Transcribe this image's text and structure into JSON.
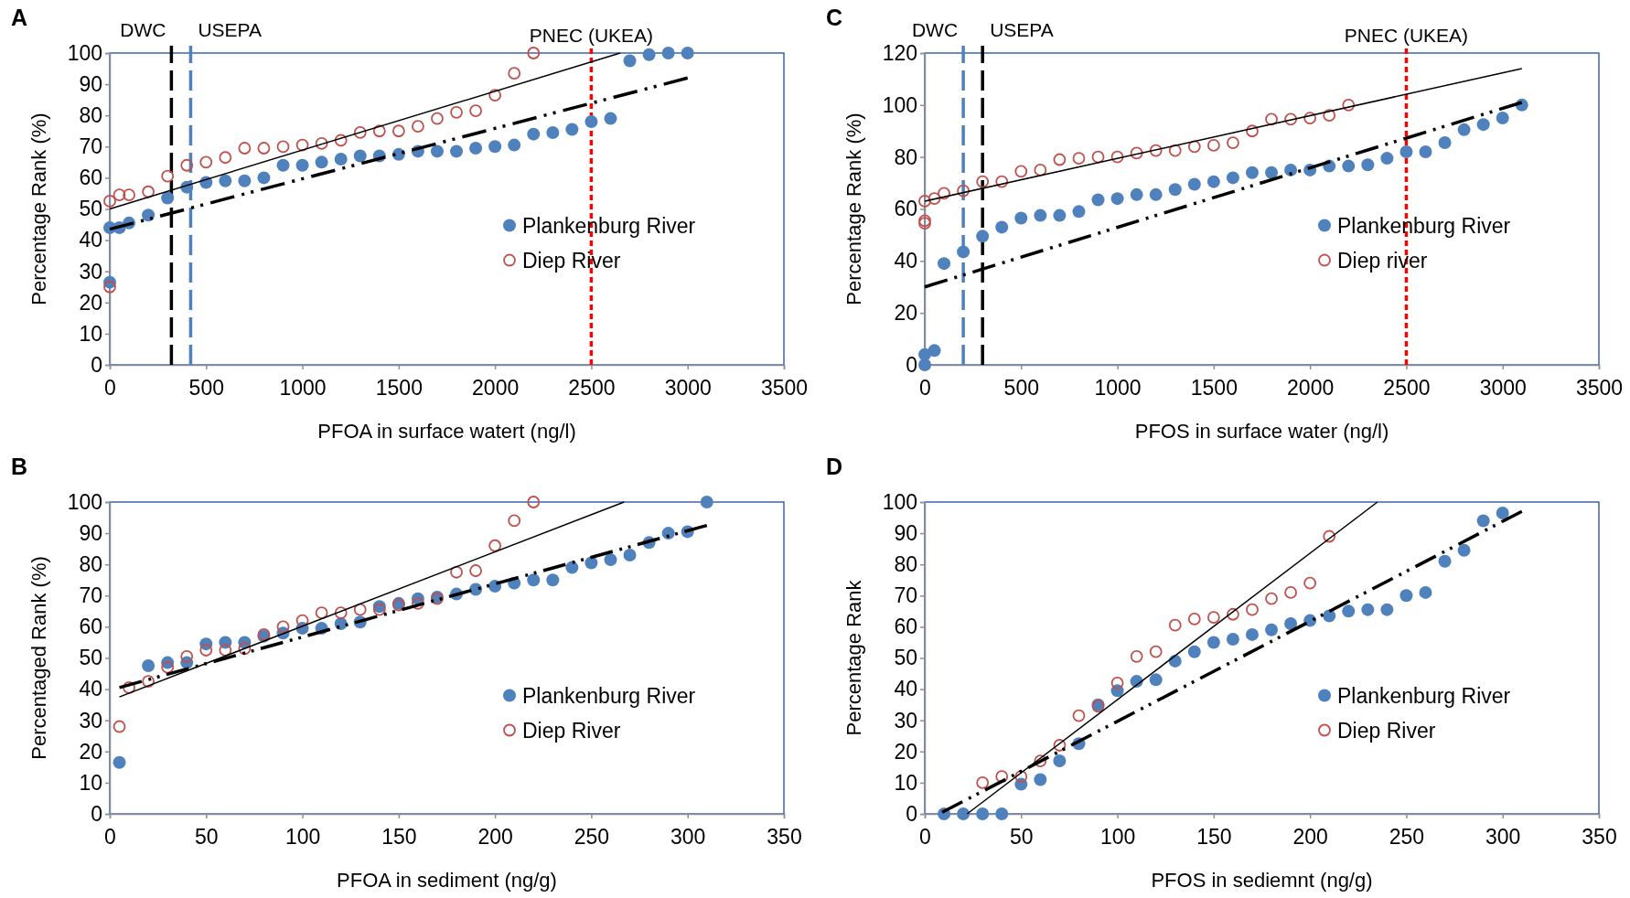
{
  "chart_data": [
    {
      "type": "scatter",
      "title": "A",
      "xlabel": "PFOA in surface watert (ng/l)",
      "ylabel": "Percentage Rank (%)",
      "xlim": [
        0,
        3500
      ],
      "xticks": [
        0,
        500,
        1000,
        1500,
        2000,
        2500,
        3000,
        3500
      ],
      "ylim": [
        0,
        100
      ],
      "yticks": [
        0,
        10,
        20,
        30,
        40,
        50,
        60,
        70,
        80,
        90,
        100
      ],
      "grid": false,
      "legend": "bottom right",
      "marker": "circle",
      "ref_lines": [
        {
          "axis": "x",
          "value": 320,
          "label": "DWC",
          "color": "#000000",
          "line_style": "dashed"
        },
        {
          "axis": "x",
          "value": 420,
          "label": "USEPA",
          "color": "#4f81bd",
          "line_style": "dashed"
        },
        {
          "axis": "x",
          "value": 2500,
          "label": "PNEC (UKEA)",
          "color": "#ff0000",
          "line_style": "dotted"
        }
      ],
      "series": [
        {
          "name": "Plankenburg River",
          "color": "#4f81bd",
          "x": [
            0,
            0,
            50,
            100,
            200,
            300,
            400,
            500,
            600,
            700,
            800,
            900,
            1000,
            1100,
            1200,
            1300,
            1400,
            1500,
            1600,
            1700,
            1800,
            1900,
            2000,
            2100,
            2200,
            2300,
            2400,
            2500,
            2600,
            2700,
            2800,
            2900,
            3000
          ],
          "values": [
            26.5,
            44,
            44,
            45.5,
            48,
            53.5,
            57,
            58.5,
            59,
            59,
            60,
            64,
            64,
            65,
            66,
            67,
            67,
            67.5,
            68.5,
            68.5,
            68.5,
            69.5,
            70,
            70.5,
            74,
            74.5,
            75.5,
            78,
            79,
            97.5,
            99.5,
            100,
            100
          ]
        },
        {
          "name": "Diep River",
          "color": "#c0504d",
          "x": [
            0,
            0,
            50,
            100,
            200,
            300,
            400,
            500,
            600,
            700,
            800,
            900,
            1000,
            1100,
            1200,
            1300,
            1400,
            1500,
            1600,
            1700,
            1800,
            1900,
            2000,
            2100,
            2200
          ],
          "values": [
            25,
            52.5,
            54.5,
            54.5,
            55.5,
            60.5,
            64,
            65,
            66.5,
            69.5,
            69.5,
            70,
            70.5,
            71,
            72,
            74.5,
            75,
            75,
            76.5,
            79,
            81,
            81.5,
            86.5,
            93.5,
            100
          ]
        },
        {
          "type": "line",
          "color": "#000000",
          "line_style": "dashed",
          "marker": "none",
          "x": [
            0,
            3000
          ],
          "values": [
            43.5,
            92
          ]
        },
        {
          "type": "line",
          "color": "#000000",
          "line_style": "solid",
          "marker": "none",
          "x": [
            0,
            2650
          ],
          "values": [
            50,
            100
          ]
        }
      ]
    },
    {
      "type": "scatter",
      "title": "C",
      "xlabel": "PFOS in surface water (ng/l)",
      "ylabel": "Percentage Rank (%)",
      "xlim": [
        0,
        3500
      ],
      "xticks": [
        0,
        500,
        1000,
        1500,
        2000,
        2500,
        3000,
        3500
      ],
      "ylim": [
        0,
        120
      ],
      "yticks": [
        0,
        20,
        40,
        60,
        80,
        100,
        120
      ],
      "grid": false,
      "legend": "bottom right",
      "marker": "circle",
      "ref_lines": [
        {
          "axis": "x",
          "value": 300,
          "label": "DWC",
          "color": "#000000",
          "line_style": "dashed"
        },
        {
          "axis": "x",
          "value": 200,
          "label": "USEPA",
          "color": "#4f81bd",
          "line_style": "dashed"
        },
        {
          "axis": "x",
          "value": 2500,
          "label": "PNEC (UKEA)",
          "color": "#ff0000",
          "line_style": "dotted"
        }
      ],
      "series": [
        {
          "name": "Plankenburg River",
          "color": "#4f81bd",
          "x": [
            0,
            0,
            50,
            100,
            200,
            300,
            400,
            500,
            600,
            700,
            800,
            900,
            1000,
            1100,
            1200,
            1300,
            1400,
            1500,
            1600,
            1700,
            1800,
            1900,
            2000,
            2100,
            2200,
            2300,
            2400,
            2500,
            2600,
            2700,
            2800,
            2900,
            3000,
            3100
          ],
          "values": [
            0,
            4,
            5.5,
            39,
            43.5,
            49.5,
            53,
            56.5,
            57.5,
            57.5,
            59,
            63.5,
            64,
            65.5,
            65.5,
            67.5,
            69.5,
            70.5,
            72,
            74,
            74,
            75,
            75,
            76.5,
            76.5,
            77,
            79.5,
            82,
            82,
            85.5,
            90.5,
            92.5,
            95,
            100
          ]
        },
        {
          "name": "Diep river",
          "color": "#c0504d",
          "x": [
            0,
            0,
            0,
            50,
            100,
            200,
            300,
            400,
            500,
            600,
            700,
            800,
            900,
            1000,
            1100,
            1200,
            1300,
            1400,
            1500,
            1600,
            1700,
            1800,
            1900,
            2000,
            2100,
            2200
          ],
          "values": [
            54.5,
            55.5,
            63,
            64,
            66,
            67,
            70.5,
            70.5,
            74.5,
            75,
            79,
            79.5,
            80,
            80,
            81.5,
            82.5,
            82.5,
            84,
            84.5,
            85.5,
            90,
            94.5,
            94.5,
            95,
            96,
            100
          ]
        },
        {
          "type": "line",
          "color": "#000000",
          "line_style": "dashed",
          "marker": "none",
          "x": [
            0,
            3100
          ],
          "values": [
            30,
            101
          ]
        },
        {
          "type": "line",
          "color": "#000000",
          "line_style": "solid",
          "marker": "none",
          "x": [
            0,
            3100
          ],
          "values": [
            63,
            114
          ]
        }
      ]
    },
    {
      "type": "scatter",
      "title": "B",
      "xlabel": "PFOA in sediment (ng/g)",
      "ylabel": "Percentaged Rank (%)",
      "xlim": [
        0,
        350
      ],
      "xticks": [
        0,
        50,
        100,
        150,
        200,
        250,
        300,
        350
      ],
      "ylim": [
        0,
        100
      ],
      "yticks": [
        0,
        10,
        20,
        30,
        40,
        50,
        60,
        70,
        80,
        90,
        100
      ],
      "grid": false,
      "legend": "right",
      "marker": "circle",
      "series": [
        {
          "name": "Plankenburg River",
          "color": "#4f81bd",
          "x": [
            5,
            20,
            30,
            40,
            50,
            60,
            70,
            80,
            90,
            100,
            110,
            120,
            130,
            140,
            150,
            160,
            170,
            180,
            190,
            200,
            210,
            220,
            230,
            240,
            250,
            260,
            270,
            280,
            290,
            300,
            310
          ],
          "values": [
            16.5,
            47.5,
            48.5,
            48.5,
            54.5,
            55,
            55,
            57,
            58,
            59.5,
            59.5,
            61,
            61.5,
            66.5,
            67.5,
            69,
            69.5,
            70.5,
            72,
            73,
            74,
            75,
            75,
            79,
            80.5,
            81.5,
            83,
            87,
            90,
            90.5,
            100
          ]
        },
        {
          "name": "Diep River",
          "color": "#c0504d",
          "x": [
            5,
            10,
            20,
            30,
            40,
            50,
            60,
            70,
            80,
            90,
            100,
            110,
            120,
            130,
            140,
            150,
            160,
            170,
            180,
            190,
            200,
            210,
            220
          ],
          "values": [
            28,
            40.5,
            42.5,
            47,
            50.5,
            52.5,
            52.5,
            53,
            57.5,
            60,
            62,
            64.5,
            64.5,
            65.5,
            65.5,
            67,
            67.5,
            69,
            77.5,
            78,
            86,
            94,
            100
          ]
        },
        {
          "type": "line",
          "color": "#000000",
          "line_style": "dashed",
          "marker": "none",
          "x": [
            5,
            310
          ],
          "values": [
            40.5,
            92.5
          ]
        },
        {
          "type": "line",
          "color": "#000000",
          "line_style": "solid",
          "marker": "none",
          "x": [
            5,
            267
          ],
          "values": [
            37.5,
            100
          ]
        }
      ]
    },
    {
      "type": "scatter",
      "title": "D",
      "xlabel": "PFOS in sediemnt (ng/g)",
      "ylabel": "Percentage Rank",
      "xlim": [
        0,
        350
      ],
      "xticks": [
        0,
        50,
        100,
        150,
        200,
        250,
        300,
        350
      ],
      "ylim": [
        0,
        100
      ],
      "yticks": [
        0,
        10,
        20,
        30,
        40,
        50,
        60,
        70,
        80,
        90,
        100
      ],
      "grid": false,
      "legend": "right",
      "marker": "circle",
      "series": [
        {
          "name": "Plankenburg River",
          "color": "#4f81bd",
          "x": [
            10,
            20,
            30,
            40,
            50,
            60,
            70,
            80,
            90,
            100,
            110,
            120,
            130,
            140,
            150,
            160,
            170,
            180,
            190,
            200,
            210,
            220,
            230,
            240,
            250,
            260,
            270,
            280,
            290,
            300
          ],
          "values": [
            0,
            0,
            0,
            0,
            9.5,
            11,
            17,
            22.5,
            35,
            39.5,
            42.5,
            43,
            49,
            52,
            55,
            56,
            57.5,
            59,
            61,
            62,
            63.5,
            65,
            65.5,
            65.5,
            70,
            71,
            81,
            84.5,
            94,
            96.5
          ]
        },
        {
          "name": "Diep River",
          "color": "#c0504d",
          "x": [
            30,
            40,
            50,
            60,
            70,
            80,
            90,
            100,
            110,
            120,
            130,
            140,
            150,
            160,
            170,
            180,
            190,
            200,
            210
          ],
          "values": [
            10,
            12,
            12,
            17,
            22,
            31.5,
            34.5,
            42,
            50.5,
            52,
            60.5,
            62.5,
            63,
            64,
            65.5,
            69,
            71,
            74,
            89
          ]
        },
        {
          "type": "line",
          "color": "#000000",
          "line_style": "dashed",
          "marker": "none",
          "x": [
            9,
            310
          ],
          "values": [
            0.5,
            97
          ]
        },
        {
          "type": "line",
          "color": "#000000",
          "line_style": "solid",
          "marker": "none",
          "x": [
            22,
            235
          ],
          "values": [
            0,
            100
          ]
        }
      ]
    }
  ]
}
